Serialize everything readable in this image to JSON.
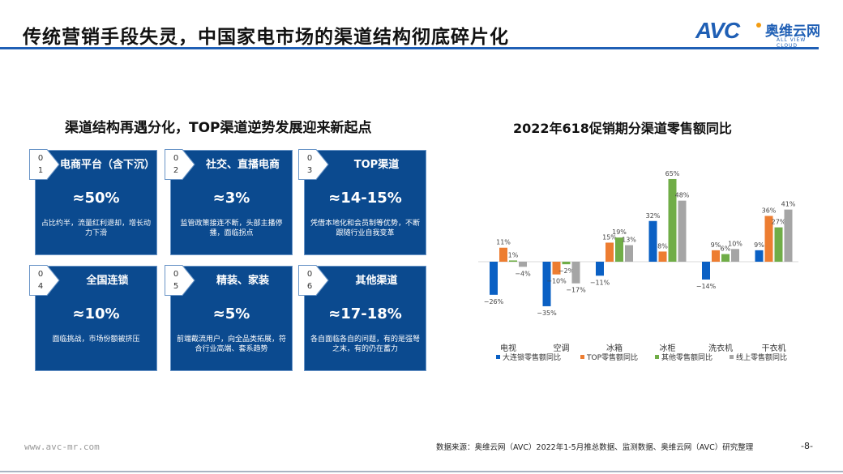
{
  "header": {
    "title": "传统营销手段失灵，中国家电市场的渠道结构彻底碎片化",
    "logo": {
      "mark": "AVC",
      "cn": "奥维云网",
      "en": "ALL VIEW CLOUD"
    }
  },
  "left": {
    "subtitle": "渠道结构再遇分化，TOP渠道逆势发展迎来新起点",
    "cards": [
      {
        "num": [
          "0",
          "1"
        ],
        "name": "电商平台（含下沉）",
        "value": "≈50%",
        "desc": "占比约半，流量红利退却，增长动力下滑"
      },
      {
        "num": [
          "0",
          "2"
        ],
        "name": "社交、直播电商",
        "value": "≈3%",
        "desc": "监管政策接连不断，头部主播停播，面临拐点"
      },
      {
        "num": [
          "0",
          "3"
        ],
        "name": "TOP渠道",
        "value": "≈14-15%",
        "desc": "凭借本地化和会员制等优势，不断跟随行业自我变革"
      },
      {
        "num": [
          "0",
          "4"
        ],
        "name": "全国连锁",
        "value": "≈10%",
        "desc": "面临挑战，市场份额被挤压"
      },
      {
        "num": [
          "0",
          "5"
        ],
        "name": "精装、家装",
        "value": "≈5%",
        "desc": "前端截流用户，向全品类拓展，符合行业高端、套系趋势"
      },
      {
        "num": [
          "0",
          "6"
        ],
        "name": "其他渠道",
        "value": "≈17-18%",
        "desc": "各自面临各自的问题，有的是强弩之末，有的仍在蓄力"
      }
    ]
  },
  "chart_data": {
    "type": "bar",
    "title": "2022年618促销期分渠道零售额同比",
    "categories": [
      "电视",
      "空调",
      "冰箱",
      "冰柜",
      "洗衣机",
      "干衣机"
    ],
    "series": [
      {
        "name": "大连锁零售额同比",
        "color": "#0a60c4",
        "values": [
          -26,
          -35,
          -11,
          32,
          -14,
          9
        ]
      },
      {
        "name": "TOP零售额同比",
        "color": "#ed7d31",
        "values": [
          11,
          -10,
          15,
          8,
          9,
          36
        ]
      },
      {
        "name": "其他零售额同比",
        "color": "#70ad47",
        "values": [
          1,
          -2,
          19,
          65,
          6,
          27
        ]
      },
      {
        "name": "线上零售额同比",
        "color": "#a5a5a5",
        "values": [
          -4,
          -17,
          13,
          48,
          10,
          41
        ]
      }
    ],
    "unit": "%",
    "legend": "bottom",
    "grid": false
  },
  "footer": {
    "site": "www.avc-mr.com",
    "source": "数据来源：奥维云网（AVC）2022年1-5月推总数据、监测数据、奥维云网（AVC）研究整理",
    "page": "-8-"
  }
}
